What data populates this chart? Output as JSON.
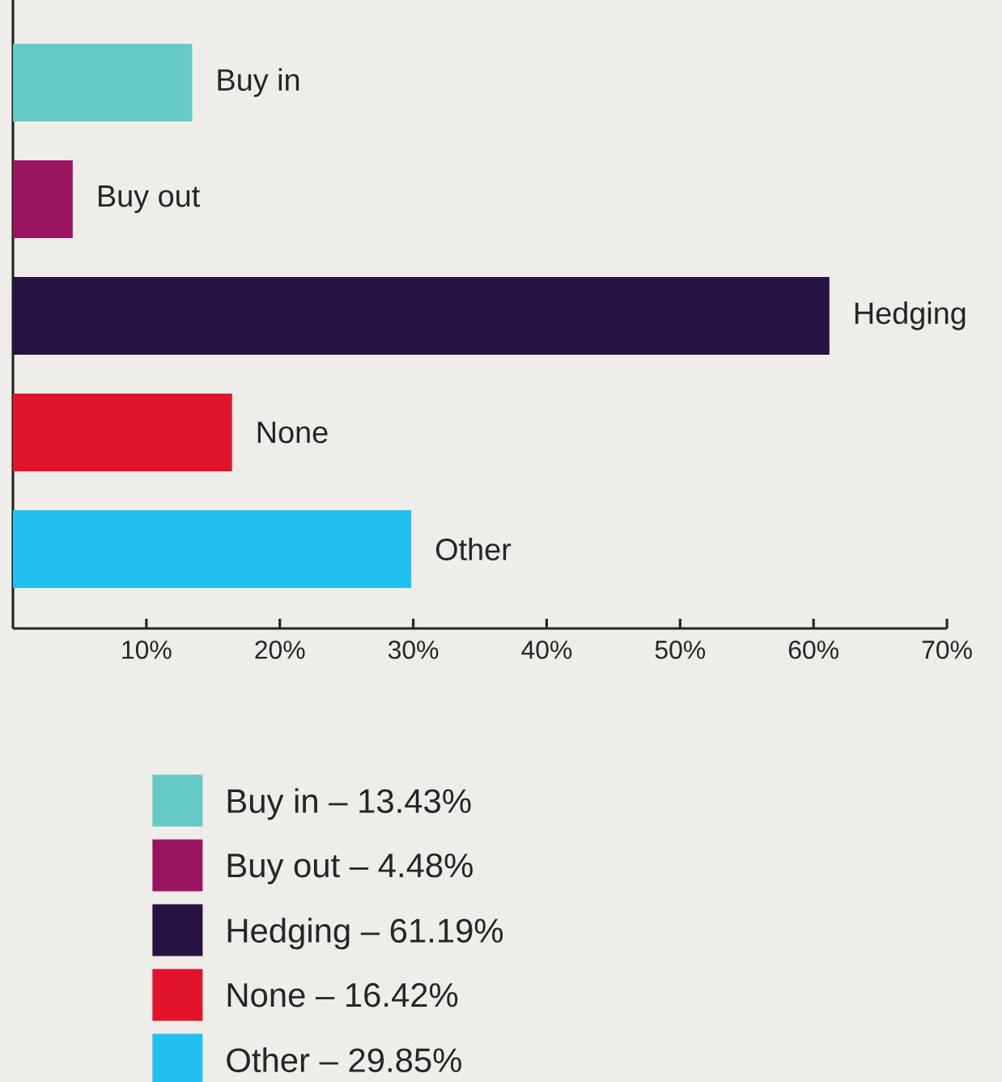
{
  "chart_data": {
    "type": "bar",
    "orientation": "horizontal",
    "categories": [
      "Buy in",
      "Buy out",
      "Hedging",
      "None",
      "Other"
    ],
    "series": [
      {
        "name": "Buy in – 13.43%",
        "color": "#66c9c6",
        "values": [
          13.43,
          null,
          null,
          null,
          null
        ]
      },
      {
        "name": "Buy out – 4.48%",
        "color": "#9b1462",
        "values": [
          null,
          4.48,
          null,
          null,
          null
        ]
      },
      {
        "name": "Hedging – 61.19%",
        "color": "#261341",
        "values": [
          null,
          null,
          61.19,
          null,
          null
        ]
      },
      {
        "name": "None – 16.42%",
        "color": "#e2142c",
        "values": [
          null,
          null,
          null,
          16.42,
          null
        ]
      },
      {
        "name": "Other – 29.85%",
        "color": "#22c0ef",
        "values": [
          null,
          null,
          null,
          null,
          29.85
        ]
      }
    ],
    "xlim": [
      0,
      70
    ],
    "xticks": [
      {
        "value": 10,
        "label": "10%"
      },
      {
        "value": 20,
        "label": "20%"
      },
      {
        "value": 30,
        "label": "30%"
      },
      {
        "value": 40,
        "label": "40%"
      },
      {
        "value": 50,
        "label": "50%"
      },
      {
        "value": 60,
        "label": "60%"
      },
      {
        "value": 70,
        "label": "70%"
      }
    ],
    "legend": "bottom"
  }
}
